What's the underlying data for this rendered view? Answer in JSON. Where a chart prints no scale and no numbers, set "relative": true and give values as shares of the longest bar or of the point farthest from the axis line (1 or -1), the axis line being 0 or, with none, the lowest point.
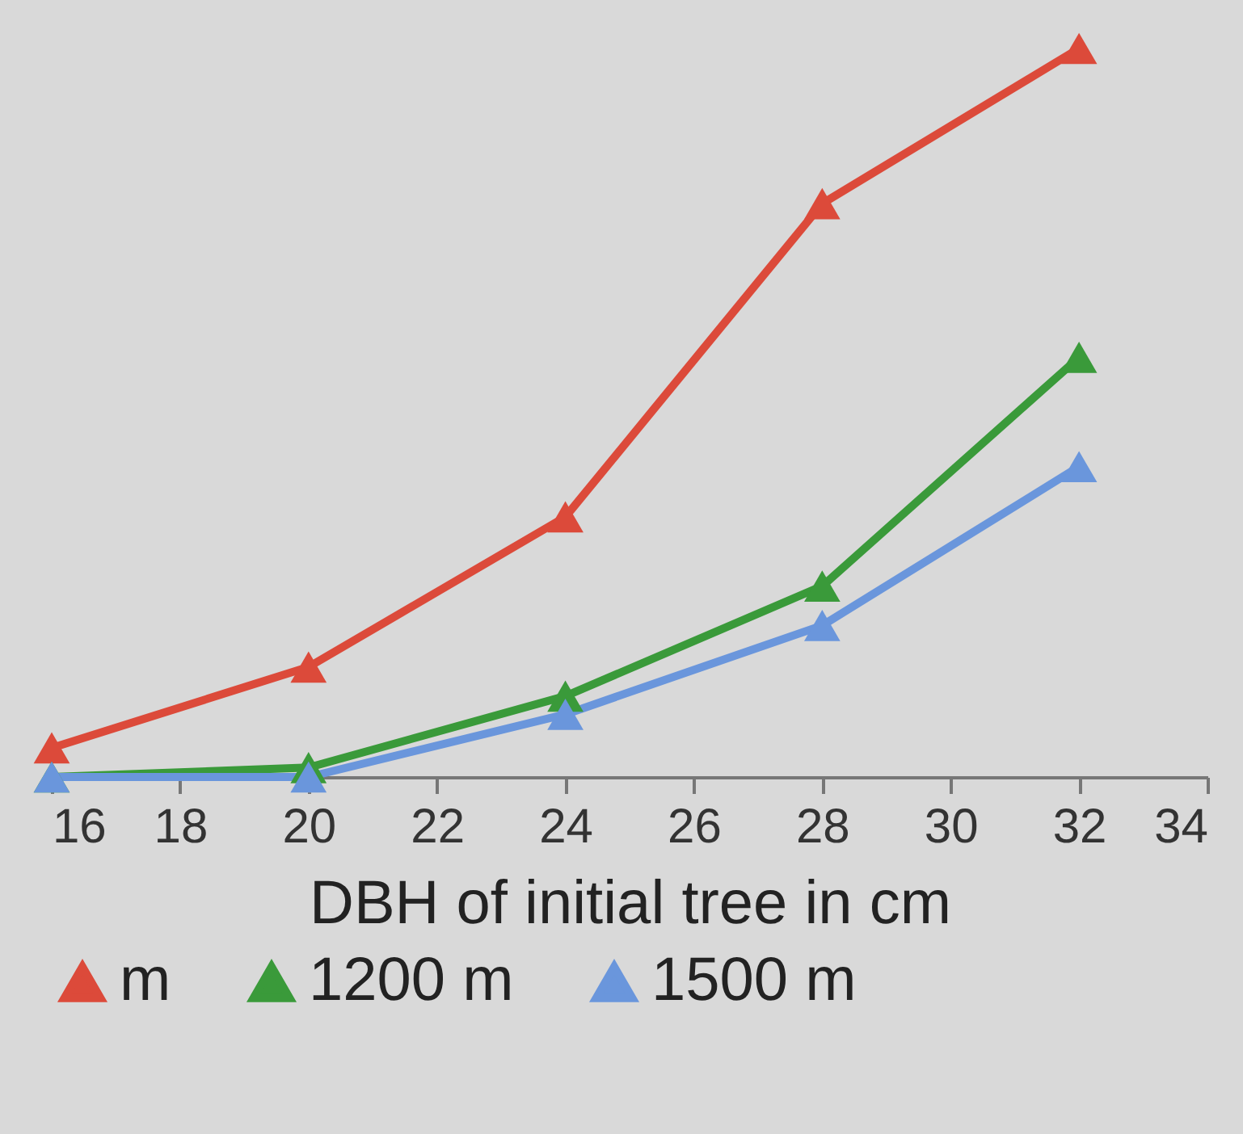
{
  "chart_data": {
    "type": "line",
    "relative": true,
    "xlabel": "DBH of initial tree in cm",
    "x": [
      16,
      20,
      24,
      28,
      32
    ],
    "xlim": [
      16,
      34
    ],
    "xticks": [
      16,
      18,
      20,
      22,
      24,
      26,
      28,
      30,
      32,
      34
    ],
    "series": [
      {
        "name": "m",
        "color": "#dc4a3a",
        "values": [
          0.04,
          0.151,
          0.357,
          0.787,
          1
        ]
      },
      {
        "name": "1200 m",
        "color": "#3a9a3a",
        "values": [
          0,
          0.013,
          0.111,
          0.262,
          0.576
        ]
      },
      {
        "name": "1500 m",
        "color": "#6a96dc",
        "values": [
          0,
          0,
          0.086,
          0.208,
          0.426
        ]
      }
    ],
    "marker": "triangle",
    "legend": "bottom"
  }
}
